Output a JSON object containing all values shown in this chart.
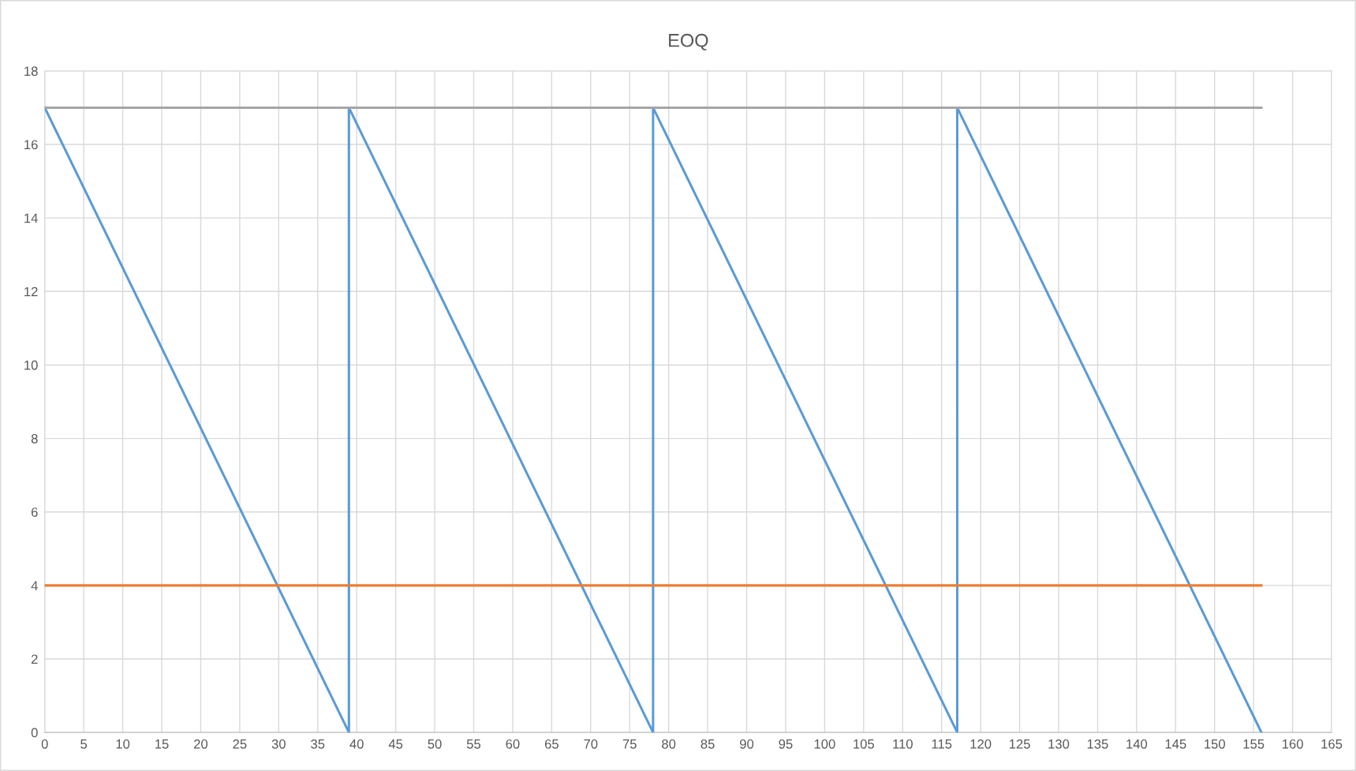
{
  "chart_data": {
    "type": "line",
    "title": "EOQ",
    "series": [
      {
        "color": "#5b9bd5",
        "x": [
          0,
          39,
          39,
          78,
          78,
          117,
          117,
          156
        ],
        "values": [
          17,
          0,
          17,
          0,
          17,
          0,
          17,
          0
        ]
      },
      {
        "color": "#ed7d31",
        "x": [
          0,
          156
        ],
        "values": [
          4,
          4
        ]
      },
      {
        "color": "#a5a5a5",
        "x": [
          0,
          156
        ],
        "values": [
          17,
          17
        ]
      }
    ],
    "xlim": [
      0,
      165
    ],
    "xticks": [
      0,
      5,
      10,
      15,
      20,
      25,
      30,
      35,
      40,
      45,
      50,
      55,
      60,
      65,
      70,
      75,
      80,
      85,
      90,
      95,
      100,
      105,
      110,
      115,
      120,
      125,
      130,
      135,
      140,
      145,
      150,
      155,
      160,
      165
    ],
    "ylim": [
      0,
      18
    ],
    "yticks": [
      0,
      2,
      4,
      6,
      8,
      10,
      12,
      14,
      16,
      18
    ],
    "grid": true,
    "marker": "none",
    "line_style": "solid"
  }
}
